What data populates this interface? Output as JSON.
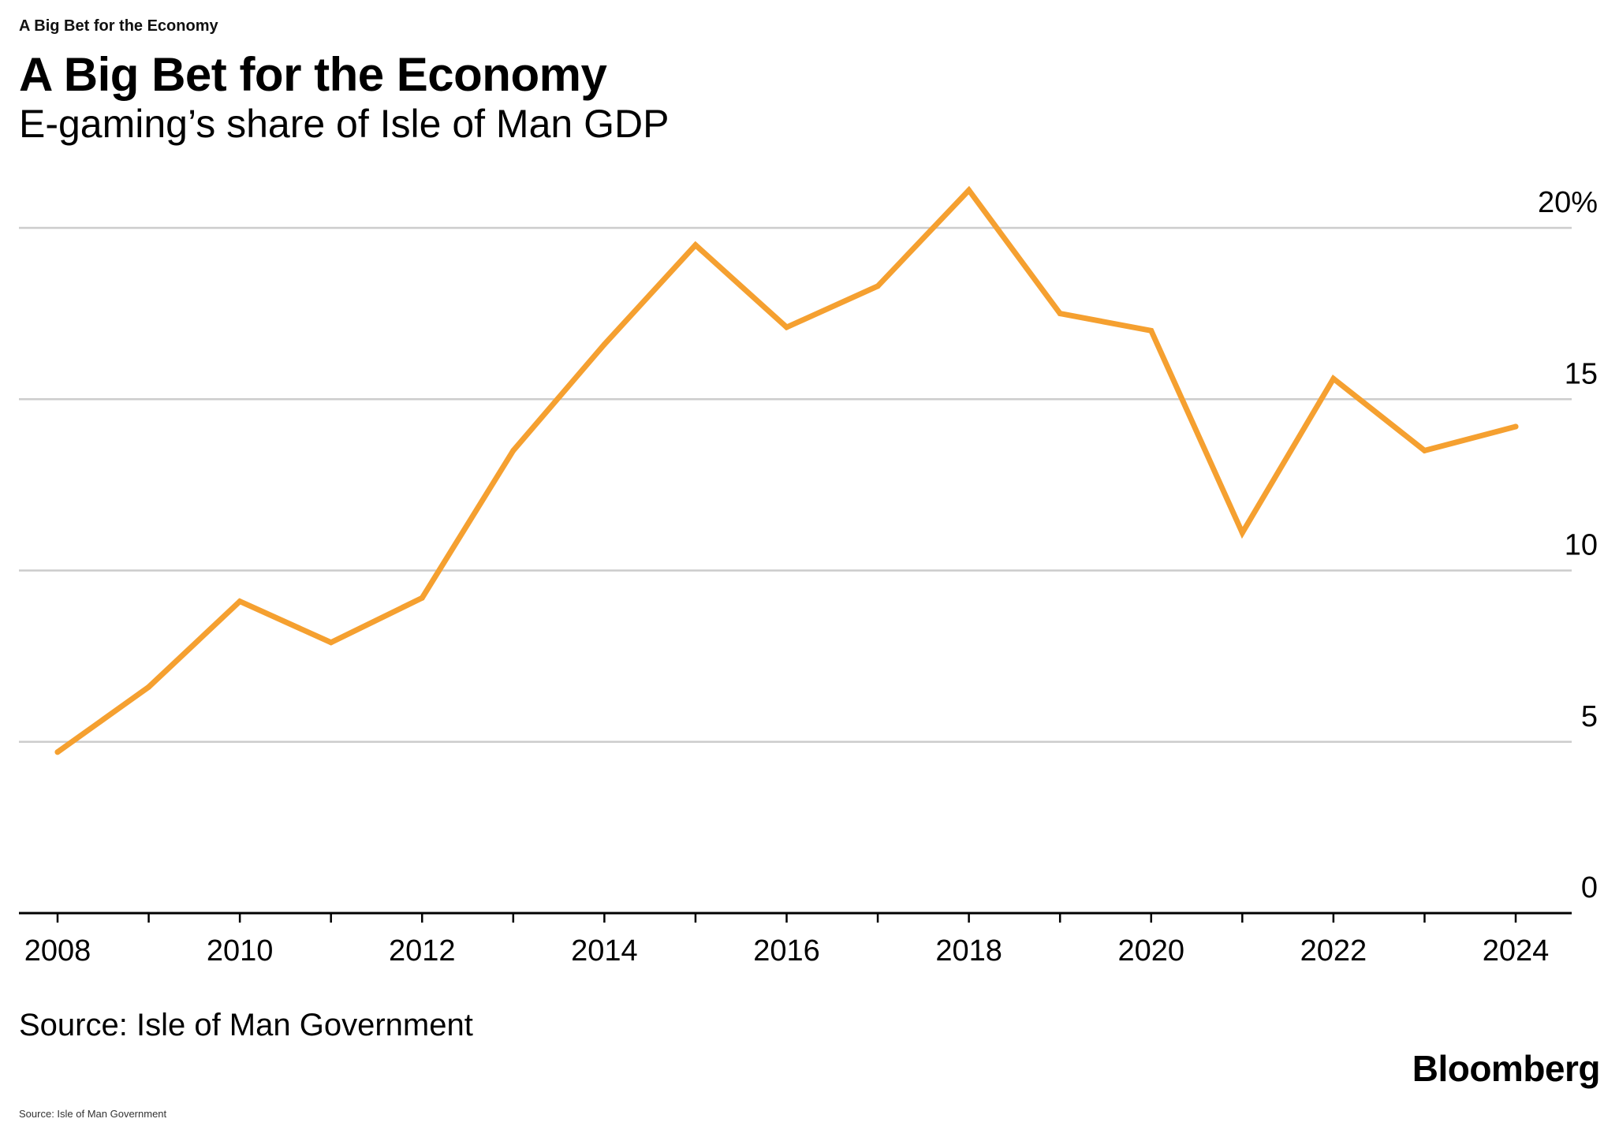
{
  "header": {
    "kicker": "A Big Bet for the Economy",
    "title": "A Big Bet for the Economy",
    "subtitle": "E-gaming’s share of Isle of Man GDP"
  },
  "footer": {
    "source": "Source: Isle of Man Government",
    "brand": "Bloomberg",
    "footnote": "Source: Isle of Man Government"
  },
  "colors": {
    "line": "#F5A030",
    "grid": "#CCCCCC",
    "axis": "#000000"
  },
  "chart_data": {
    "type": "line",
    "title": "A Big Bet for the Economy",
    "subtitle": "E-gaming’s share of Isle of Man GDP",
    "xlabel": "",
    "ylabel": "",
    "x": [
      2008,
      2009,
      2010,
      2011,
      2012,
      2013,
      2014,
      2015,
      2016,
      2017,
      2018,
      2019,
      2020,
      2021,
      2022,
      2023,
      2024
    ],
    "series": [
      {
        "values": [
          4.7,
          6.6,
          9.1,
          7.9,
          9.2,
          13.5,
          16.6,
          19.5,
          17.1,
          18.3,
          21.1,
          17.5,
          17.0,
          11.1,
          15.6,
          13.5,
          14.2
        ]
      }
    ],
    "xlim": [
      2008,
      2024
    ],
    "ylim": [
      0,
      20
    ],
    "y_ticks": [
      {
        "value": 20,
        "label": "20%"
      },
      {
        "value": 15,
        "label": "15"
      },
      {
        "value": 10,
        "label": "10"
      },
      {
        "value": 5,
        "label": "5"
      },
      {
        "value": 0,
        "label": "0"
      }
    ],
    "x_tick_labels": [
      {
        "value": 2008,
        "label": "2008"
      },
      {
        "value": 2010,
        "label": "2010"
      },
      {
        "value": 2012,
        "label": "2012"
      },
      {
        "value": 2014,
        "label": "2014"
      },
      {
        "value": 2016,
        "label": "2016"
      },
      {
        "value": 2018,
        "label": "2018"
      },
      {
        "value": 2020,
        "label": "2020"
      },
      {
        "value": 2022,
        "label": "2022"
      },
      {
        "value": 2024,
        "label": "2024"
      }
    ],
    "grid": true,
    "y_axis_side": "right",
    "legend": "none"
  }
}
